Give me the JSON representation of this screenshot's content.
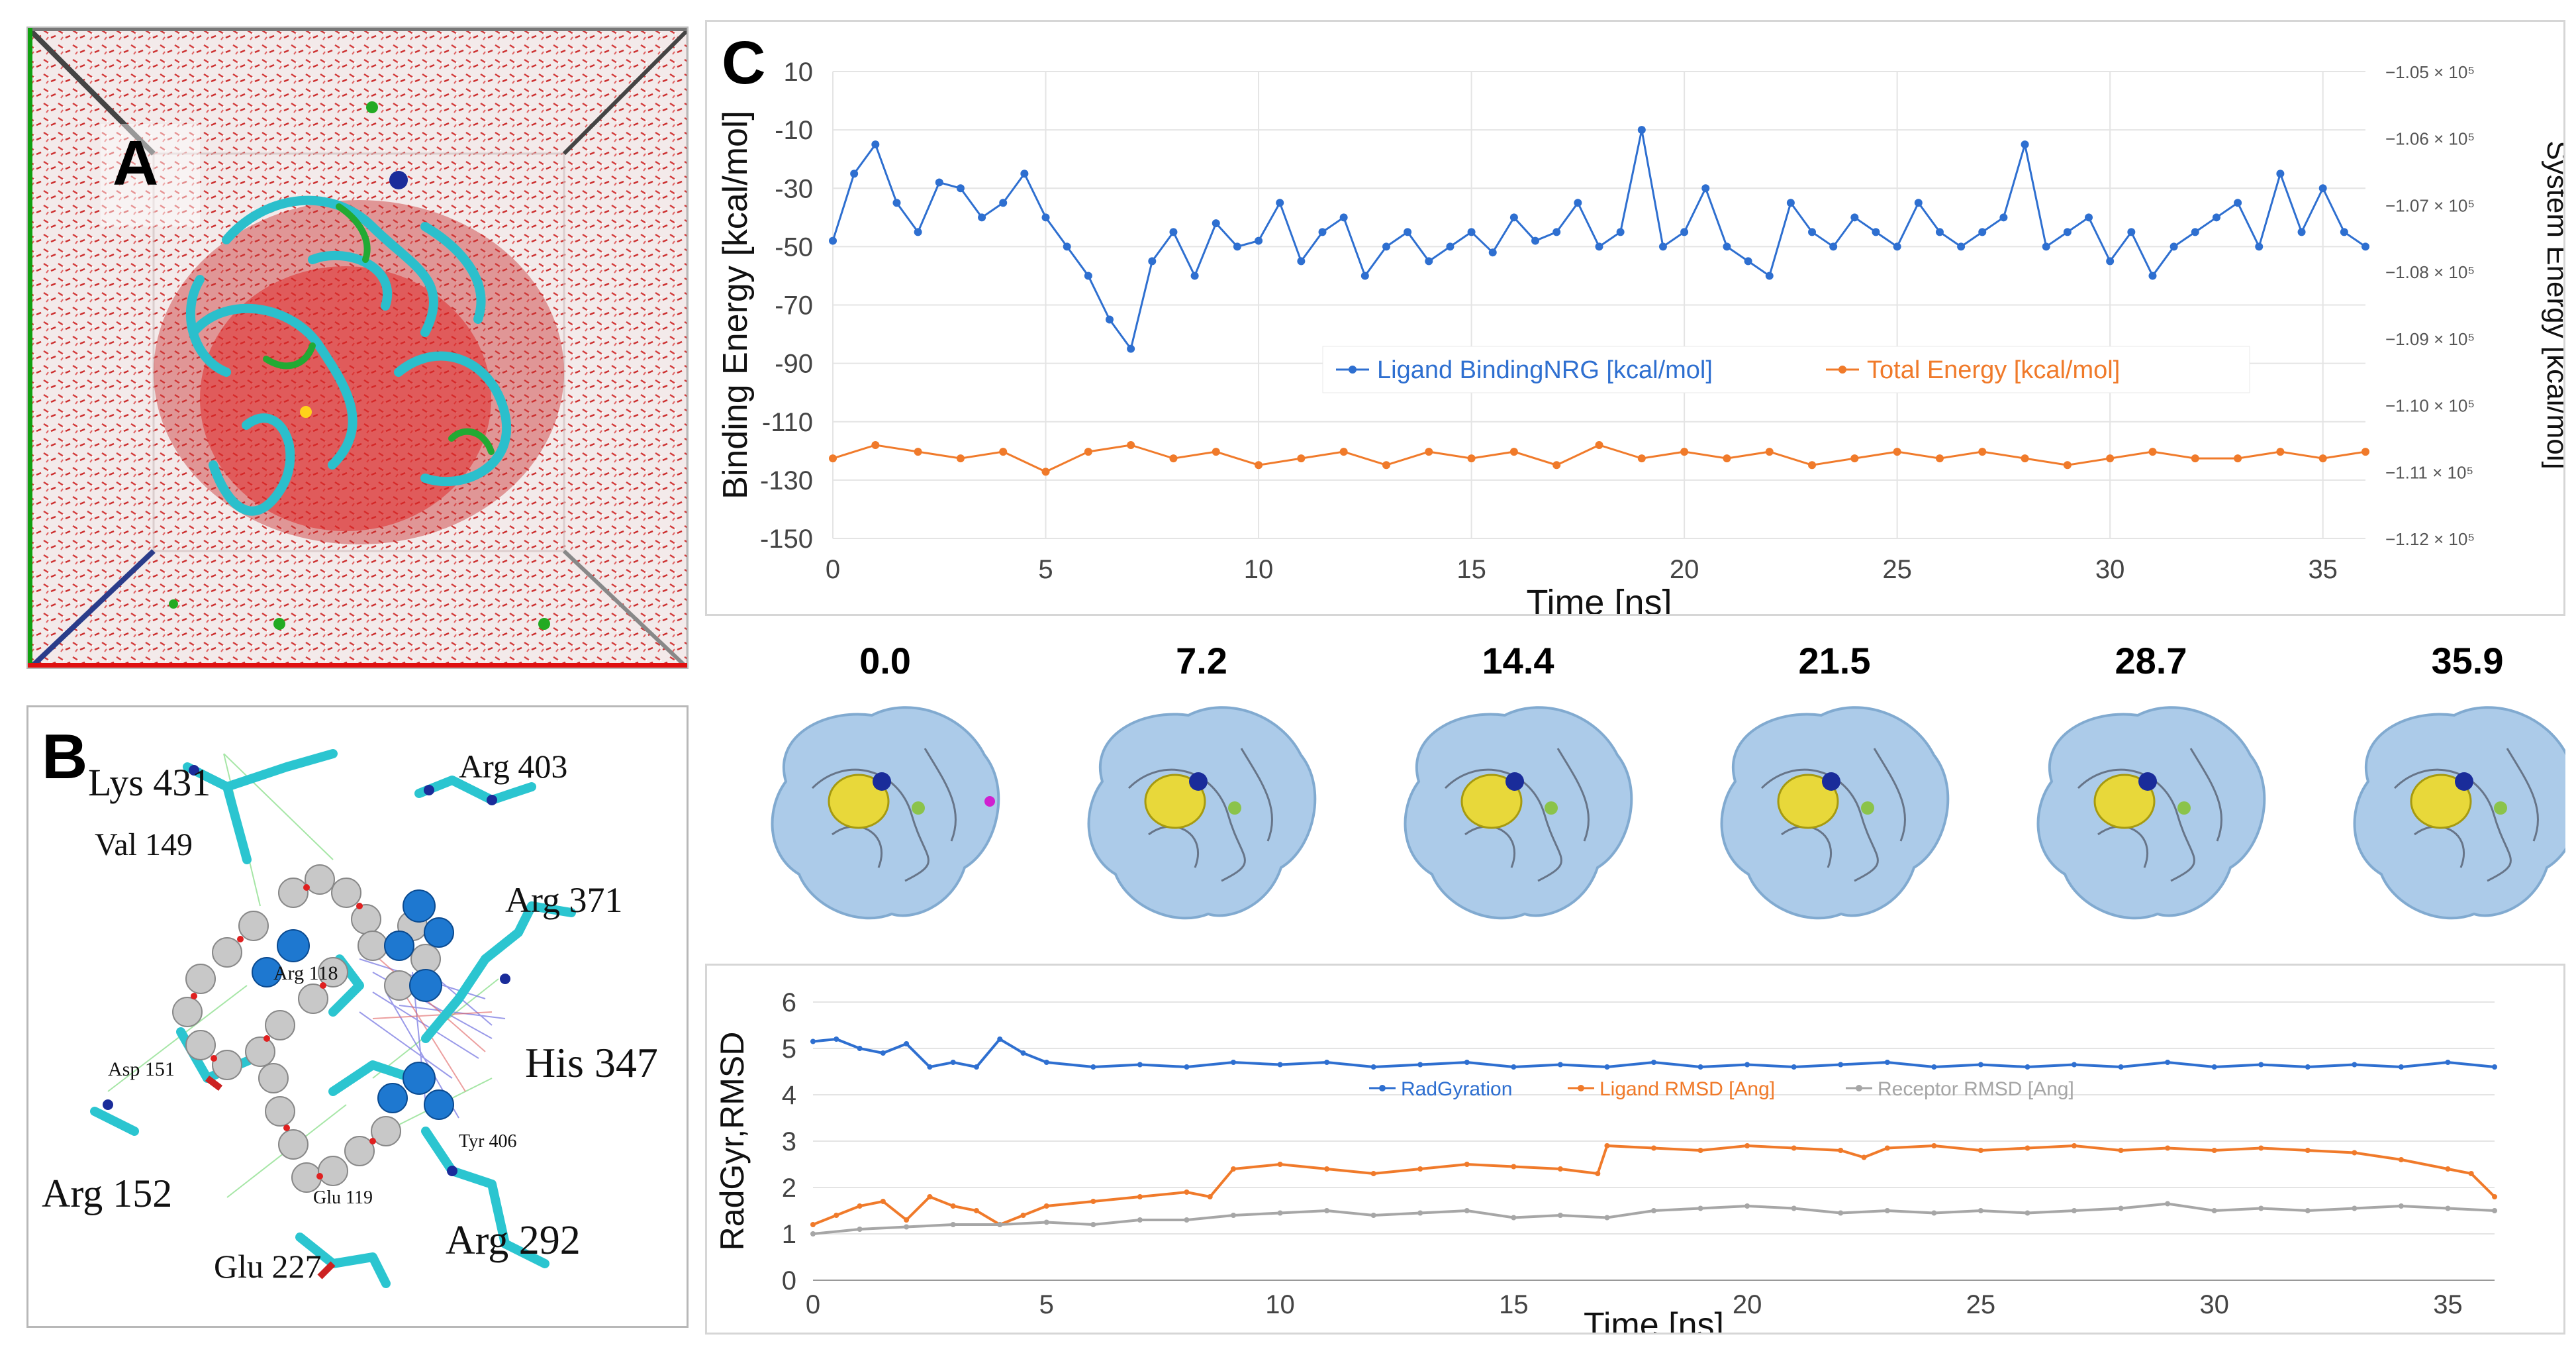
{
  "panel_letters": {
    "a": "A",
    "b": "B",
    "c": "C"
  },
  "panel_b": {
    "residues_large": [
      "Lys 431",
      "Arg 403",
      "Val 149",
      "Arg 371",
      "His 347",
      "Arg 152",
      "Glu 227",
      "Arg 292"
    ],
    "residues_small": [
      "Arg 118",
      "Asp 151",
      "Tyr 406",
      "Glu 119"
    ]
  },
  "snapshots": {
    "times": [
      "0.0",
      "7.2",
      "14.4",
      "21.5",
      "28.7",
      "35.9"
    ]
  },
  "colors": {
    "blue": "#2e6fd0",
    "orange": "#f07a2a",
    "gray": "#a6a6a6",
    "cyan": "#2ec4d0"
  },
  "chart_data": [
    {
      "type": "line",
      "title": "",
      "xlabel": "Time [ns]",
      "ylabel": "Binding Energy [kcal/mol]",
      "ylabel_right": "System Energy [kcal/mol]",
      "xlim": [
        0,
        36
      ],
      "ylim": [
        -150,
        10
      ],
      "xticks": [
        "0",
        "5",
        "10",
        "15",
        "20",
        "25",
        "30",
        "35"
      ],
      "yticks": [
        "10",
        "-10",
        "-30",
        "-50",
        "-70",
        "-90",
        "-110",
        "-130",
        "-150"
      ],
      "right_ylim": [
        -112000,
        -105000
      ],
      "right_yticks": [
        "−1.05 × 10⁵",
        "−1.06 × 10⁵",
        "−1.07 × 10⁵",
        "−1.08 × 10⁵",
        "−1.09 × 10⁵",
        "−1.10 × 10⁵",
        "−1.11 × 10⁵",
        "−1.12 × 10⁵"
      ],
      "series": [
        {
          "name": "Ligand BindingNRG [kcal/mol]",
          "color": "#2e6fd0",
          "axis": "left",
          "x": [
            0,
            0.5,
            1,
            1.5,
            2,
            2.5,
            3,
            3.5,
            4,
            4.5,
            5,
            5.5,
            6,
            6.5,
            7,
            7.5,
            8,
            8.5,
            9,
            9.5,
            10,
            10.5,
            11,
            11.5,
            12,
            12.5,
            13,
            13.5,
            14,
            14.5,
            15,
            15.5,
            16,
            16.5,
            17,
            17.5,
            18,
            18.5,
            19,
            19.5,
            20,
            20.5,
            21,
            21.5,
            22,
            22.5,
            23,
            23.5,
            24,
            24.5,
            25,
            25.5,
            26,
            26.5,
            27,
            27.5,
            28,
            28.5,
            29,
            29.5,
            30,
            30.5,
            31,
            31.5,
            32,
            32.5,
            33,
            33.5,
            34,
            34.5,
            35,
            35.5,
            36
          ],
          "y": [
            -48,
            -25,
            -15,
            -35,
            -45,
            -28,
            -30,
            -40,
            -35,
            -25,
            -40,
            -50,
            -60,
            -75,
            -85,
            -55,
            -45,
            -60,
            -42,
            -50,
            -48,
            -35,
            -55,
            -45,
            -40,
            -60,
            -50,
            -45,
            -55,
            -50,
            -45,
            -52,
            -40,
            -48,
            -45,
            -35,
            -50,
            -45,
            -10,
            -50,
            -45,
            -30,
            -50,
            -55,
            -60,
            -35,
            -45,
            -50,
            -40,
            -45,
            -50,
            -35,
            -45,
            -50,
            -45,
            -40,
            -15,
            -50,
            -45,
            -40,
            -55,
            -45,
            -60,
            -50,
            -45,
            -40,
            -35,
            -50,
            -25,
            -45,
            -30,
            -45,
            -50
          ]
        },
        {
          "name": "Total Energy [kcal/mol]",
          "color": "#f07a2a",
          "axis": "right",
          "x": [
            0,
            1,
            2,
            3,
            4,
            5,
            6,
            7,
            8,
            9,
            10,
            11,
            12,
            13,
            14,
            15,
            16,
            17,
            18,
            19,
            20,
            21,
            22,
            23,
            24,
            25,
            26,
            27,
            28,
            29,
            30,
            31,
            32,
            33,
            34,
            35,
            36
          ],
          "y": [
            -110800,
            -110600,
            -110700,
            -110800,
            -110700,
            -111000,
            -110700,
            -110600,
            -110800,
            -110700,
            -110900,
            -110800,
            -110700,
            -110900,
            -110700,
            -110800,
            -110700,
            -110900,
            -110600,
            -110800,
            -110700,
            -110800,
            -110700,
            -110900,
            -110800,
            -110700,
            -110800,
            -110700,
            -110800,
            -110900,
            -110800,
            -110700,
            -110800,
            -110800,
            -110700,
            -110800,
            -110700
          ]
        }
      ],
      "legend_position": "center"
    },
    {
      "type": "line",
      "title": "",
      "xlabel": "Time [ns]",
      "ylabel": "RadGyr,RMSD",
      "xlim": [
        0,
        36
      ],
      "ylim": [
        0,
        6
      ],
      "xticks": [
        "0",
        "5",
        "10",
        "15",
        "20",
        "25",
        "30",
        "35"
      ],
      "yticks": [
        "0",
        "1",
        "2",
        "3",
        "4",
        "5",
        "6"
      ],
      "series": [
        {
          "name": "RadGyration",
          "color": "#2e6fd0",
          "x": [
            0,
            0.5,
            1,
            1.5,
            2,
            2.5,
            3,
            3.5,
            4,
            4.5,
            5,
            6,
            7,
            8,
            9,
            10,
            11,
            12,
            13,
            14,
            15,
            16,
            17,
            18,
            19,
            20,
            21,
            22,
            23,
            24,
            25,
            26,
            27,
            28,
            29,
            30,
            31,
            32,
            33,
            34,
            35,
            36
          ],
          "y": [
            5.15,
            5.2,
            5.0,
            4.9,
            5.1,
            4.6,
            4.7,
            4.6,
            5.2,
            4.9,
            4.7,
            4.6,
            4.65,
            4.6,
            4.7,
            4.65,
            4.7,
            4.6,
            4.65,
            4.7,
            4.6,
            4.65,
            4.6,
            4.7,
            4.6,
            4.65,
            4.6,
            4.65,
            4.7,
            4.6,
            4.65,
            4.6,
            4.65,
            4.6,
            4.7,
            4.6,
            4.65,
            4.6,
            4.65,
            4.6,
            4.7,
            4.6
          ]
        },
        {
          "name": "Ligand RMSD [Ang]",
          "color": "#f07a2a",
          "x": [
            0,
            0.5,
            1,
            1.5,
            2,
            2.5,
            3,
            3.5,
            4,
            4.5,
            5,
            6,
            7,
            8,
            8.5,
            9,
            10,
            11,
            12,
            13,
            14,
            15,
            16,
            16.8,
            17,
            18,
            19,
            20,
            21,
            22,
            22.5,
            23,
            24,
            25,
            26,
            27,
            28,
            29,
            30,
            31,
            32,
            33,
            34,
            35,
            35.5,
            36
          ],
          "y": [
            1.2,
            1.4,
            1.6,
            1.7,
            1.3,
            1.8,
            1.6,
            1.5,
            1.2,
            1.4,
            1.6,
            1.7,
            1.8,
            1.9,
            1.8,
            2.4,
            2.5,
            2.4,
            2.3,
            2.4,
            2.5,
            2.45,
            2.4,
            2.3,
            2.9,
            2.85,
            2.8,
            2.9,
            2.85,
            2.8,
            2.65,
            2.85,
            2.9,
            2.8,
            2.85,
            2.9,
            2.8,
            2.85,
            2.8,
            2.85,
            2.8,
            2.75,
            2.6,
            2.4,
            2.3,
            1.8
          ]
        },
        {
          "name": "Receptor RMSD [Ang]",
          "color": "#a6a6a6",
          "x": [
            0,
            1,
            2,
            3,
            4,
            5,
            6,
            7,
            8,
            9,
            10,
            11,
            12,
            13,
            14,
            15,
            16,
            17,
            18,
            19,
            20,
            21,
            22,
            23,
            24,
            25,
            26,
            27,
            28,
            29,
            30,
            31,
            32,
            33,
            34,
            35,
            36
          ],
          "y": [
            1.0,
            1.1,
            1.15,
            1.2,
            1.2,
            1.25,
            1.2,
            1.3,
            1.3,
            1.4,
            1.45,
            1.5,
            1.4,
            1.45,
            1.5,
            1.35,
            1.4,
            1.35,
            1.5,
            1.55,
            1.6,
            1.55,
            1.45,
            1.5,
            1.45,
            1.5,
            1.45,
            1.5,
            1.55,
            1.65,
            1.5,
            1.55,
            1.5,
            1.55,
            1.6,
            1.55,
            1.5
          ]
        }
      ],
      "legend_position": "center"
    }
  ]
}
